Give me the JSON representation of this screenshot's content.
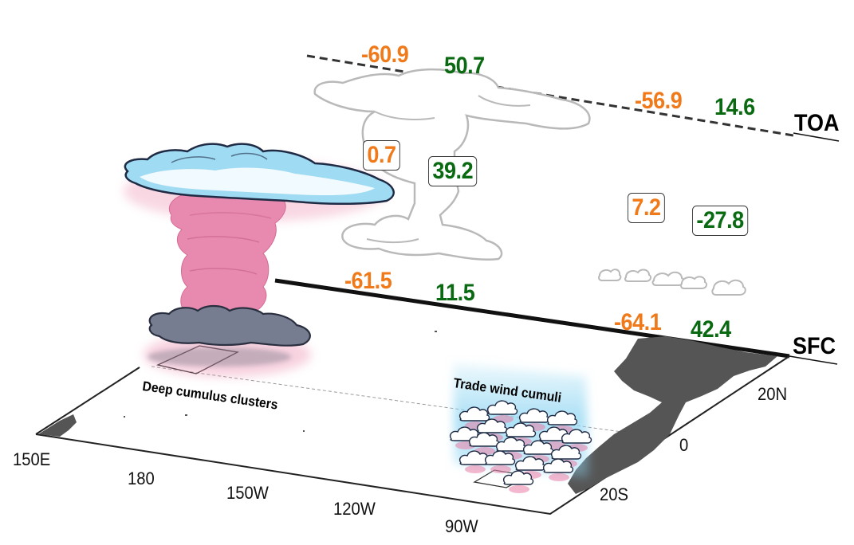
{
  "colors": {
    "warm_value": "#f07a1a",
    "cool_value": "#0a6a12",
    "cloud_blue": "#8fd6f2",
    "cloud_pink": "#e97ea5",
    "cloud_gray": "#6e7587",
    "land": "#555555",
    "outline": "#b7b7b7"
  },
  "levels": {
    "toa": "TOA",
    "sfc": "SFC"
  },
  "values": {
    "toa_deep_warm": "-60.9",
    "toa_deep_cool": "50.7",
    "toa_trade_warm": "-56.9",
    "toa_trade_cool": "14.6",
    "atm_deep_warm": "0.7",
    "atm_deep_cool": "39.2",
    "atm_trade_warm": "7.2",
    "atm_trade_cool": "-27.8",
    "sfc_deep_warm": "-61.5",
    "sfc_deep_cool": "11.5",
    "sfc_trade_warm": "-64.1",
    "sfc_trade_cool": "42.4"
  },
  "regions": {
    "deep": "Deep cumulus clusters",
    "trade": "Trade wind cumuli"
  },
  "lon_ticks": [
    "150E",
    "180",
    "150W",
    "120W",
    "90W"
  ],
  "lat_ticks": [
    "20N",
    "0",
    "20S"
  ]
}
